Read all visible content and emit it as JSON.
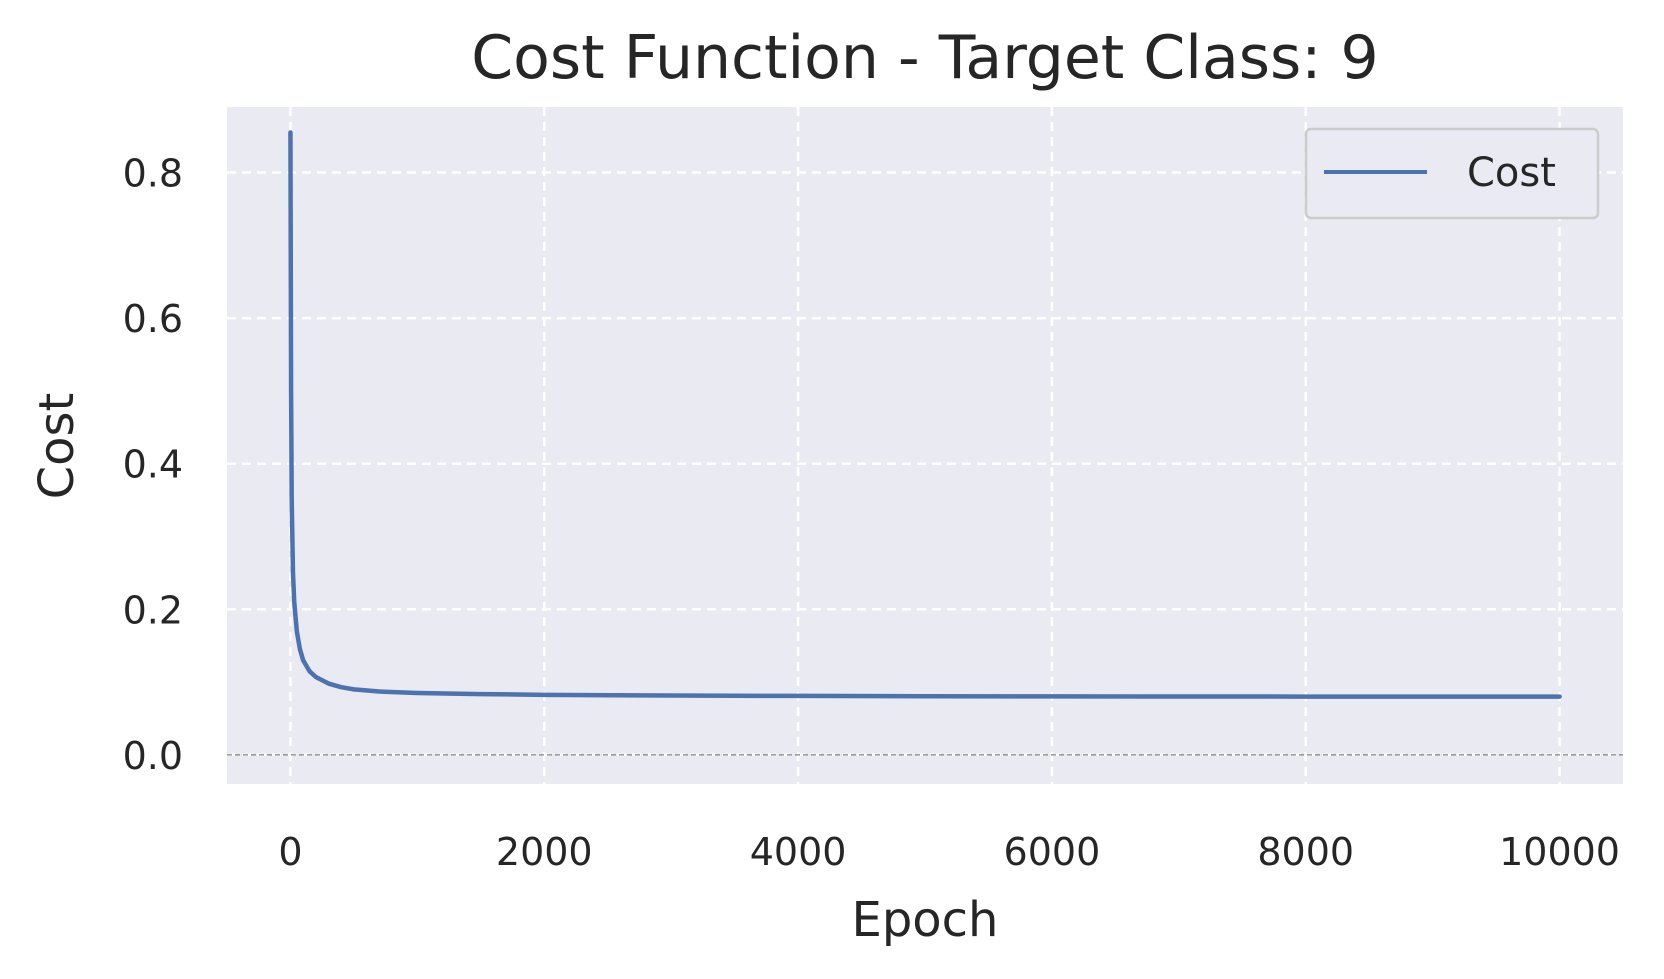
{
  "chart_data": {
    "type": "line",
    "title": "Cost Function - Target Class: 9",
    "xlabel": "Epoch",
    "ylabel": "Cost",
    "xlim": [
      -500,
      10500
    ],
    "ylim": [
      -0.04,
      0.89
    ],
    "xticks": [
      0,
      2000,
      4000,
      6000,
      8000,
      10000
    ],
    "xtick_labels": [
      "0",
      "2000",
      "4000",
      "6000",
      "8000",
      "10000"
    ],
    "yticks": [
      0.0,
      0.2,
      0.4,
      0.6,
      0.8
    ],
    "ytick_labels": [
      "0.0",
      "0.2",
      "0.4",
      "0.6",
      "0.8"
    ],
    "grid": true,
    "grid_style": "dashed",
    "reference_line": {
      "y": 0.0,
      "style": "dashed",
      "color": "#808080"
    },
    "legend": {
      "placement": "top-right",
      "entries": [
        "Cost"
      ]
    },
    "colors": {
      "plot_background": "#eaeaf2",
      "grid": "#ffffff",
      "series": "#4c72b0"
    },
    "series": [
      {
        "name": "Cost",
        "x": [
          0,
          5,
          10,
          20,
          30,
          50,
          75,
          100,
          150,
          200,
          300,
          400,
          500,
          700,
          1000,
          1500,
          2000,
          3000,
          4000,
          5000,
          6000,
          7000,
          8000,
          9000,
          10000
        ],
        "y": [
          0.855,
          0.5,
          0.35,
          0.25,
          0.21,
          0.17,
          0.145,
          0.13,
          0.115,
          0.107,
          0.098,
          0.093,
          0.09,
          0.087,
          0.085,
          0.0835,
          0.0825,
          0.0815,
          0.081,
          0.0805,
          0.0803,
          0.0802,
          0.0801,
          0.08,
          0.08
        ]
      }
    ]
  }
}
